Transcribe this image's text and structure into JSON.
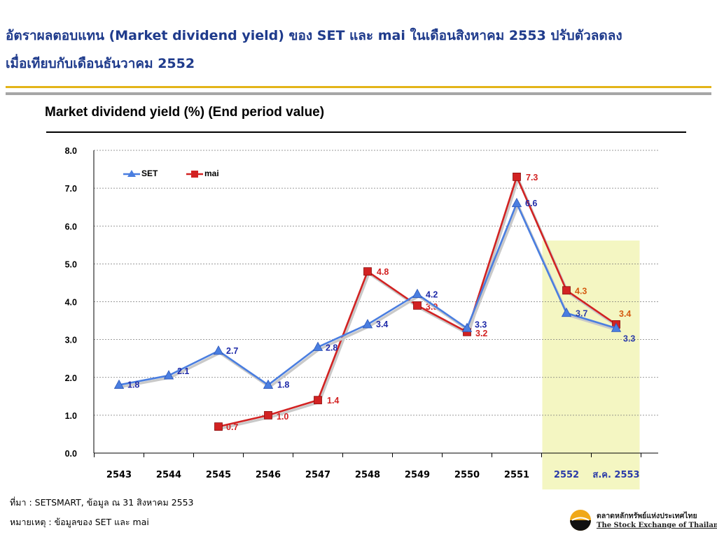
{
  "headline": {
    "line1": "อัตราผลตอบแทน (Market dividend yield) ของ SET และ mai ในเดือนสิงหาคม 2553 ปรับตัวลดลง",
    "line2": "เมื่อเทียบกับเดือนธันวาคม 2552"
  },
  "chart_title": "Market dividend yield (%) (End period value)",
  "colors": {
    "headline": "#1f3b8c",
    "set": "#4a7ee0",
    "mai": "#d22222",
    "set_label": "#1e2aa8",
    "mai_label": "#d22222",
    "highlight": "#f4f6c2",
    "highlight_label_set": "#2a3aa8",
    "highlight_label_mai": "#d45a10"
  },
  "chart_data": {
    "type": "line",
    "title": "Market dividend yield (%) (End period value)",
    "categories": [
      "2543",
      "2544",
      "2545",
      "2546",
      "2547",
      "2548",
      "2549",
      "2550",
      "2551",
      "2552",
      "ส.ค. 2553"
    ],
    "series": [
      {
        "name": "SET",
        "values": [
          1.8,
          2.05,
          2.7,
          1.8,
          2.8,
          3.4,
          4.2,
          3.3,
          6.6,
          3.7,
          3.3
        ],
        "labels": [
          "1.8",
          "2.1",
          "2.7",
          "1.8",
          "2.8",
          "3.4",
          "4.2",
          "3.3",
          "6.6",
          "3.7",
          "3.3"
        ]
      },
      {
        "name": "mai",
        "values": [
          null,
          null,
          0.7,
          1.0,
          1.4,
          4.8,
          3.9,
          3.2,
          7.3,
          4.3,
          3.4
        ],
        "labels": [
          "",
          "",
          "0.7",
          "1.0",
          "1.4",
          "4.8",
          "3.9",
          "3.2",
          "7.3",
          "4.3",
          "3.4"
        ]
      }
    ],
    "ylim": [
      0,
      8
    ],
    "yticks": [
      "0.0",
      "1.0",
      "2.0",
      "3.0",
      "4.0",
      "5.0",
      "6.0",
      "7.0",
      "8.0"
    ],
    "highlighted_categories": [
      "2552",
      "ส.ค. 2553"
    ],
    "grid": true,
    "legend": "top-left"
  },
  "footnotes": {
    "source": "ที่มา : SETSMART, ข้อมูล ณ  31 สิงหาคม 2553",
    "note": "หมายเหตุ : ข้อมูลของ SET และ mai"
  },
  "logo": {
    "name_th": "ตลาดหลักทรัพย์แห่งประเทศไทย",
    "name_en": "The Stock Exchange of Thailand"
  }
}
